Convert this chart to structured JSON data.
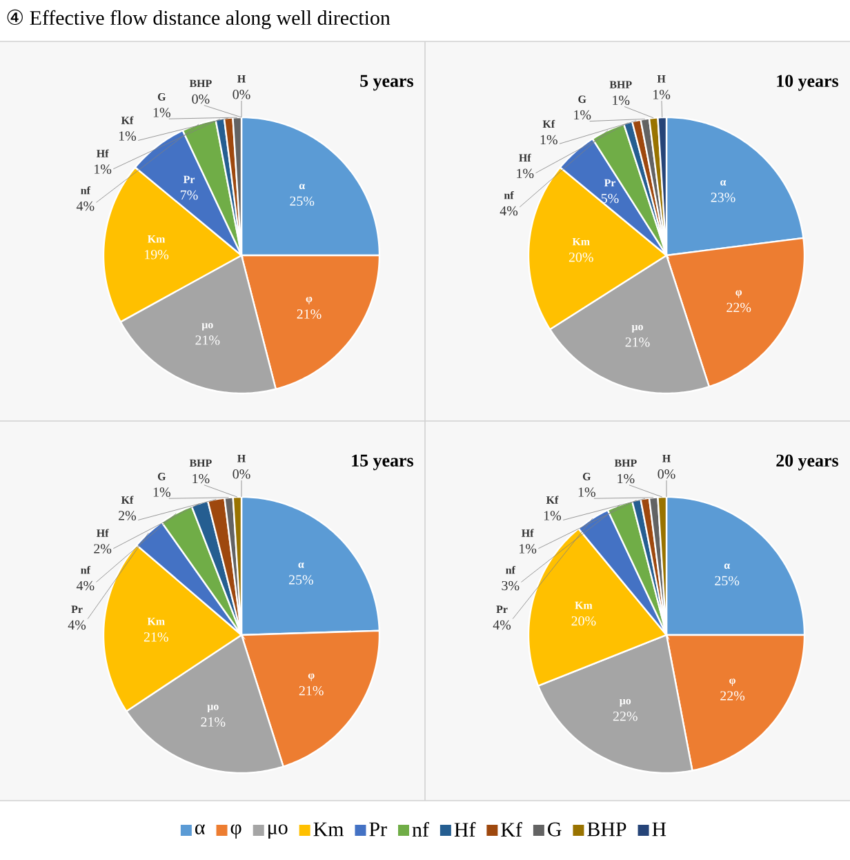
{
  "chart_data": [
    {
      "type": "pie",
      "title": "5 years",
      "annotations": [
        "④ Effective flow distance along well direction"
      ],
      "categories": [
        "α",
        "φ",
        "μo",
        "Km",
        "Pr",
        "nf",
        "Hf",
        "Kf",
        "G",
        "BHP",
        "H"
      ],
      "values": [
        25,
        21,
        21,
        19,
        7,
        4,
        1,
        1,
        1,
        0,
        0
      ],
      "value_labels": [
        "25%",
        "21%",
        "21%",
        "19%",
        "7%",
        "4%",
        "1%",
        "1%",
        "1%",
        "0%",
        "0%"
      ],
      "colors": [
        "#5b9bd5",
        "#ed7d31",
        "#a5a5a5",
        "#ffc000",
        "#4472c4",
        "#70ad47",
        "#255e91",
        "#9e480e",
        "#636363",
        "#997300",
        "#264478"
      ]
    },
    {
      "type": "pie",
      "title": "10 years",
      "categories": [
        "α",
        "φ",
        "μo",
        "Km",
        "Pr",
        "nf",
        "Hf",
        "Kf",
        "G",
        "BHP",
        "H"
      ],
      "values": [
        23,
        22,
        21,
        20,
        5,
        4,
        1,
        1,
        1,
        1,
        1
      ],
      "value_labels": [
        "23%",
        "22%",
        "21%",
        "20%",
        "5%",
        "4%",
        "1%",
        "1%",
        "1%",
        "1%",
        "1%"
      ],
      "colors": [
        "#5b9bd5",
        "#ed7d31",
        "#a5a5a5",
        "#ffc000",
        "#4472c4",
        "#70ad47",
        "#255e91",
        "#9e480e",
        "#636363",
        "#997300",
        "#264478"
      ]
    },
    {
      "type": "pie",
      "title": "15 years",
      "categories": [
        "α",
        "φ",
        "μo",
        "Km",
        "Pr",
        "nf",
        "Hf",
        "Kf",
        "G",
        "BHP",
        "H"
      ],
      "values": [
        25,
        21,
        21,
        21,
        4,
        4,
        2,
        2,
        1,
        1,
        0
      ],
      "value_labels": [
        "25%",
        "21%",
        "21%",
        "21%",
        "4%",
        "4%",
        "2%",
        "2%",
        "1%",
        "1%",
        "0%"
      ],
      "colors": [
        "#5b9bd5",
        "#ed7d31",
        "#a5a5a5",
        "#ffc000",
        "#4472c4",
        "#70ad47",
        "#255e91",
        "#9e480e",
        "#636363",
        "#997300",
        "#264478"
      ]
    },
    {
      "type": "pie",
      "title": "20 years",
      "legend": "bottom",
      "categories": [
        "α",
        "φ",
        "μo",
        "Km",
        "Pr",
        "nf",
        "Hf",
        "Kf",
        "G",
        "BHP",
        "H"
      ],
      "values": [
        25,
        22,
        22,
        20,
        4,
        3,
        1,
        1,
        1,
        1,
        0
      ],
      "value_labels": [
        "25%",
        "22%",
        "22%",
        "20%",
        "4%",
        "3%",
        "1%",
        "1%",
        "1%",
        "1%",
        "0%"
      ],
      "colors": [
        "#5b9bd5",
        "#ed7d31",
        "#a5a5a5",
        "#ffc000",
        "#4472c4",
        "#70ad47",
        "#255e91",
        "#9e480e",
        "#636363",
        "#997300",
        "#264478"
      ]
    }
  ]
}
